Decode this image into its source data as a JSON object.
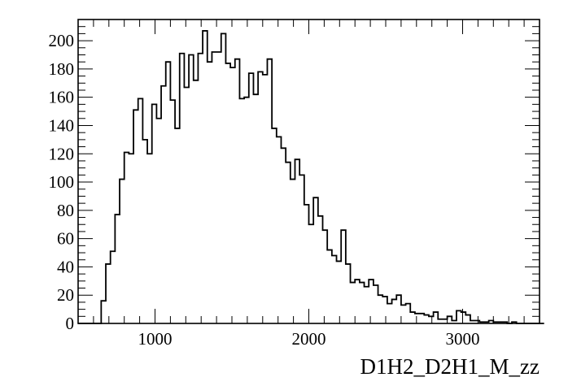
{
  "chart_data": {
    "type": "bar",
    "style": "step-histogram",
    "title": "",
    "xlabel": "D1H2_D2H1_M_zz",
    "ylabel": "",
    "xlim": [
      500,
      3500
    ],
    "ylim": [
      0,
      215
    ],
    "bin_width": 30,
    "x_start": 500,
    "x_ticks": [
      1000,
      2000,
      3000
    ],
    "y_ticks": [
      0,
      20,
      40,
      60,
      80,
      100,
      120,
      140,
      160,
      180,
      200
    ],
    "values": [
      0,
      0,
      0,
      0,
      0,
      16,
      42,
      51,
      77,
      102,
      121,
      120,
      151,
      159,
      130,
      120,
      155,
      145,
      168,
      185,
      158,
      138,
      191,
      167,
      190,
      172,
      191,
      207,
      185,
      192,
      192,
      205,
      184,
      181,
      187,
      159,
      160,
      177,
      162,
      178,
      176,
      187,
      138,
      132,
      124,
      114,
      102,
      116,
      105,
      84,
      70,
      89,
      76,
      66,
      52,
      48,
      44,
      66,
      42,
      29,
      31,
      29,
      26,
      31,
      27,
      20,
      19,
      14,
      17,
      20,
      13,
      14,
      8,
      7,
      7,
      6,
      5,
      8,
      3,
      3,
      5,
      2,
      9,
      8,
      6,
      2,
      2,
      1,
      1,
      2,
      1,
      1,
      1,
      0,
      1,
      0,
      0,
      0,
      0,
      0,
      0
    ]
  }
}
